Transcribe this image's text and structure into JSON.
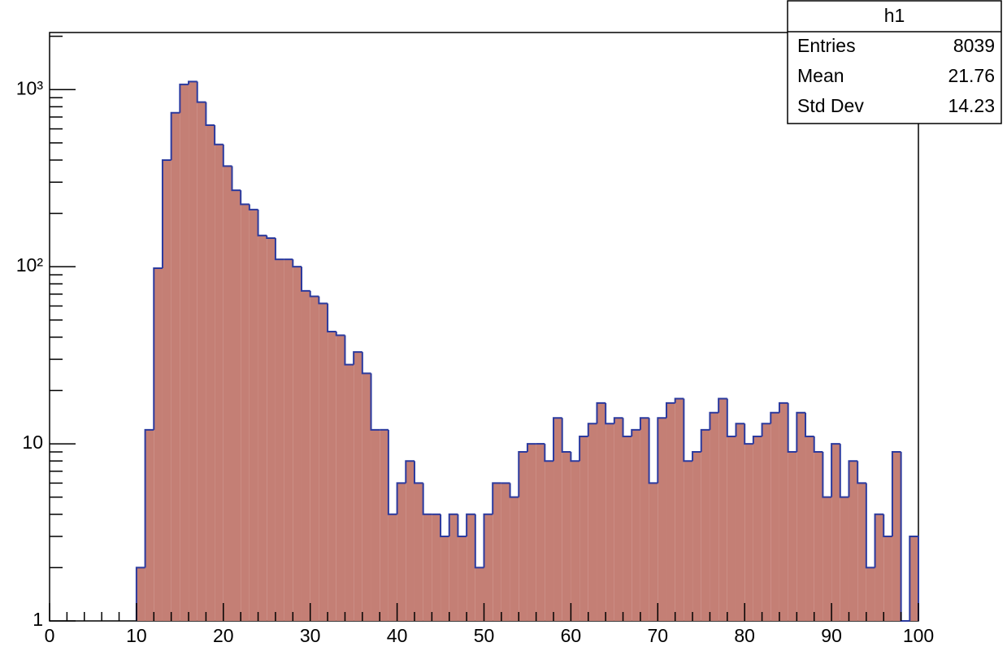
{
  "chart_data": {
    "type": "histogram",
    "stats": {
      "title": "h1",
      "rows": [
        [
          "Entries",
          "8039"
        ],
        [
          "Mean",
          "21.76"
        ],
        [
          "Std Dev",
          "14.23"
        ]
      ]
    },
    "bins": [
      0,
      1,
      2,
      3,
      4,
      5,
      6,
      7,
      8,
      9,
      10,
      11,
      12,
      13,
      14,
      15,
      16,
      17,
      18,
      19,
      20,
      21,
      22,
      23,
      24,
      25,
      26,
      27,
      28,
      29,
      30,
      31,
      32,
      33,
      34,
      35,
      36,
      37,
      38,
      39,
      40,
      41,
      42,
      43,
      44,
      45,
      46,
      47,
      48,
      49,
      50,
      51,
      52,
      53,
      54,
      55,
      56,
      57,
      58,
      59,
      60,
      61,
      62,
      63,
      64,
      65,
      66,
      67,
      68,
      69,
      70,
      71,
      72,
      73,
      74,
      75,
      76,
      77,
      78,
      79,
      80,
      81,
      82,
      83,
      84,
      85,
      86,
      87,
      88,
      89,
      90,
      91,
      92,
      93,
      94,
      95,
      96,
      97,
      98,
      99,
      100
    ],
    "values": [
      0,
      0,
      0,
      0,
      0,
      0,
      0,
      0,
      0,
      0,
      2,
      12,
      98,
      400,
      740,
      1070,
      1110,
      850,
      630,
      490,
      370,
      270,
      225,
      210,
      150,
      145,
      110,
      110,
      100,
      73,
      68,
      62,
      43,
      41,
      28,
      33,
      25,
      12,
      12,
      4,
      6,
      8,
      6,
      4,
      4,
      3,
      4,
      3,
      4,
      2,
      4,
      6,
      6,
      5,
      9,
      10,
      10,
      8,
      14,
      9,
      8,
      11,
      13,
      17,
      13,
      14,
      11,
      12,
      14,
      6,
      14,
      17,
      18,
      8,
      9,
      12,
      15,
      18,
      11,
      13,
      10,
      11,
      13,
      15,
      17,
      9,
      15,
      11,
      9,
      5,
      10,
      5,
      8,
      6,
      2,
      4,
      3,
      9,
      0,
      3
    ],
    "color": "#c47f75",
    "line_color": "#2b3a9e",
    "xlim": [
      0,
      100
    ],
    "xticks": [
      0,
      10,
      20,
      30,
      40,
      50,
      60,
      70,
      80,
      90,
      100
    ],
    "ylim": [
      1,
      2100
    ],
    "log_y": true,
    "yticks": [
      1,
      10,
      {
        "value": 100,
        "label": "10²"
      },
      {
        "value": 1000,
        "label": "10³"
      }
    ]
  }
}
